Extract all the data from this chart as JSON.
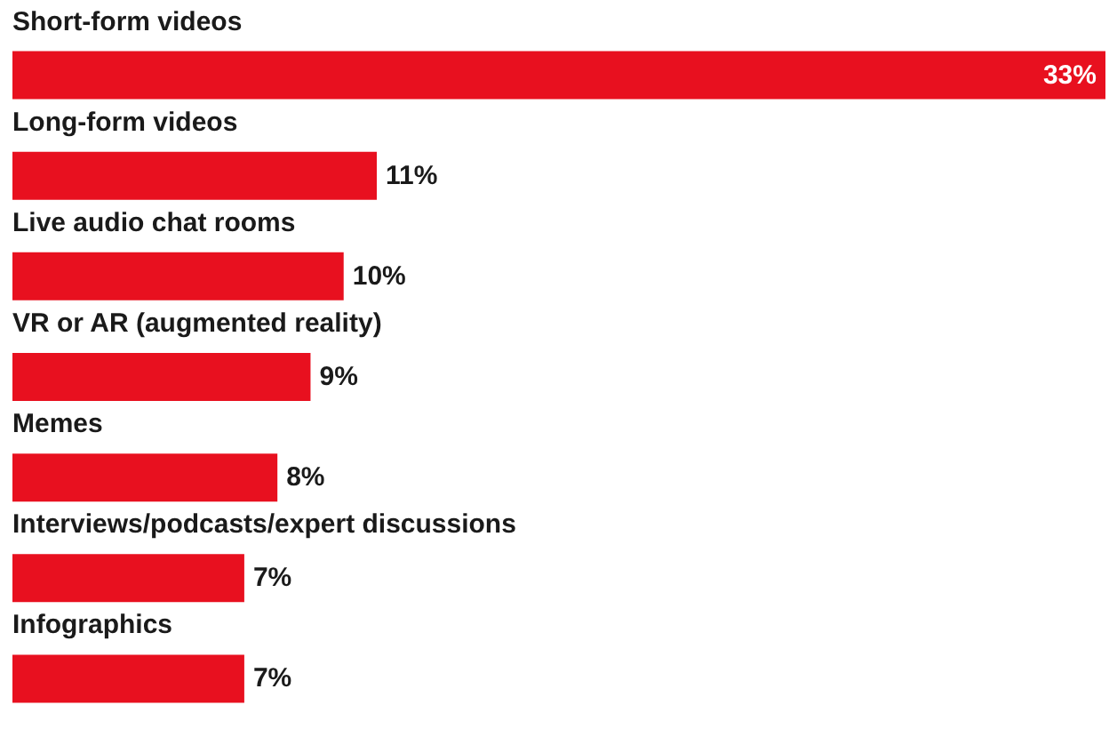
{
  "chart_data": {
    "type": "bar",
    "orientation": "horizontal",
    "categories": [
      "Short-form videos",
      "Long-form videos",
      "Live audio chat rooms",
      "VR or AR (augmented reality)",
      "Memes",
      "Interviews/podcasts/expert discussions",
      "Infographics"
    ],
    "values": [
      33,
      11,
      10,
      9,
      8,
      7,
      7
    ],
    "value_labels": [
      "33%",
      "11%",
      "10%",
      "9%",
      "8%",
      "7%",
      "7%"
    ],
    "color": "#e8101f"
  }
}
